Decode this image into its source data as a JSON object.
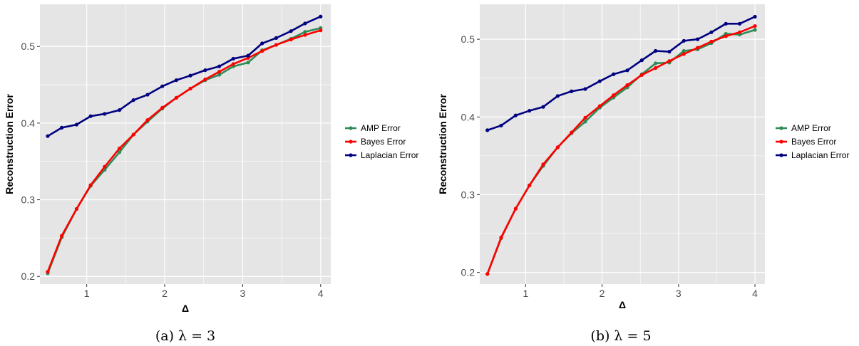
{
  "colors": {
    "panel_bg": "#e5e5e5",
    "grid": "#ffffff",
    "amp": "#2e8b57",
    "bayes": "#ff0000",
    "laplacian": "#000080"
  },
  "chart_data": [
    {
      "type": "line",
      "caption": "(a) λ = 3",
      "xlabel": "Δ",
      "ylabel": "Reconstruction Error",
      "xlim": [
        0.4,
        4.13
      ],
      "ylim": [
        0.19,
        0.555
      ],
      "x_ticks": [
        1,
        2,
        3,
        4
      ],
      "y_ticks": [
        0.2,
        0.3,
        0.4,
        0.5
      ],
      "y_tick_labels": [
        "0.2",
        "0.3",
        "0.4",
        "0.5"
      ],
      "grid": true,
      "legend_position": "right",
      "x": [
        0.5,
        0.68,
        0.87,
        1.05,
        1.23,
        1.42,
        1.6,
        1.78,
        1.97,
        2.15,
        2.33,
        2.52,
        2.7,
        2.88,
        3.07,
        3.25,
        3.43,
        3.62,
        3.8,
        4.0
      ],
      "series": [
        {
          "name": "AMP Error",
          "color": "#2e8b57",
          "values": [
            0.204,
            0.251,
            0.288,
            0.318,
            0.339,
            0.362,
            0.385,
            0.402,
            0.419,
            0.433,
            0.445,
            0.456,
            0.463,
            0.474,
            0.479,
            0.495,
            0.502,
            0.51,
            0.519,
            0.524
          ]
        },
        {
          "name": "Bayes Error",
          "color": "#ff0000",
          "values": [
            0.206,
            0.253,
            0.288,
            0.319,
            0.343,
            0.367,
            0.385,
            0.404,
            0.42,
            0.433,
            0.445,
            0.457,
            0.467,
            0.477,
            0.485,
            0.494,
            0.502,
            0.509,
            0.515,
            0.521
          ]
        },
        {
          "name": "Laplacian Error",
          "color": "#000080",
          "values": [
            0.383,
            0.394,
            0.398,
            0.409,
            0.412,
            0.417,
            0.43,
            0.437,
            0.448,
            0.456,
            0.462,
            0.469,
            0.474,
            0.484,
            0.488,
            0.504,
            0.511,
            0.52,
            0.53,
            0.539
          ]
        }
      ]
    },
    {
      "type": "line",
      "caption": "(b) λ = 5",
      "xlabel": "Δ",
      "ylabel": "Reconstruction Error",
      "xlim": [
        0.4,
        4.13
      ],
      "ylim": [
        0.185,
        0.545
      ],
      "x_ticks": [
        1,
        2,
        3,
        4
      ],
      "y_ticks": [
        0.2,
        0.3,
        0.4,
        0.5
      ],
      "y_tick_labels": [
        "0.2",
        "0.3",
        "0.4",
        "0.5"
      ],
      "grid": true,
      "legend_position": "right",
      "x": [
        0.5,
        0.68,
        0.87,
        1.05,
        1.23,
        1.42,
        1.6,
        1.78,
        1.97,
        2.15,
        2.33,
        2.52,
        2.7,
        2.88,
        3.07,
        3.25,
        3.43,
        3.62,
        3.8,
        4.0
      ],
      "series": [
        {
          "name": "AMP Error",
          "color": "#2e8b57",
          "values": [
            0.198,
            0.244,
            0.282,
            0.312,
            0.337,
            0.361,
            0.379,
            0.394,
            0.412,
            0.425,
            0.438,
            0.455,
            0.469,
            0.47,
            0.485,
            0.487,
            0.495,
            0.507,
            0.506,
            0.512
          ]
        },
        {
          "name": "Bayes Error",
          "color": "#ff0000",
          "values": [
            0.198,
            0.245,
            0.282,
            0.312,
            0.339,
            0.361,
            0.38,
            0.399,
            0.414,
            0.428,
            0.441,
            0.454,
            0.463,
            0.472,
            0.481,
            0.489,
            0.497,
            0.504,
            0.509,
            0.517
          ]
        },
        {
          "name": "Laplacian Error",
          "color": "#000080",
          "values": [
            0.383,
            0.389,
            0.402,
            0.408,
            0.413,
            0.427,
            0.433,
            0.436,
            0.446,
            0.455,
            0.46,
            0.473,
            0.485,
            0.484,
            0.498,
            0.5,
            0.509,
            0.52,
            0.52,
            0.529
          ]
        }
      ]
    }
  ]
}
